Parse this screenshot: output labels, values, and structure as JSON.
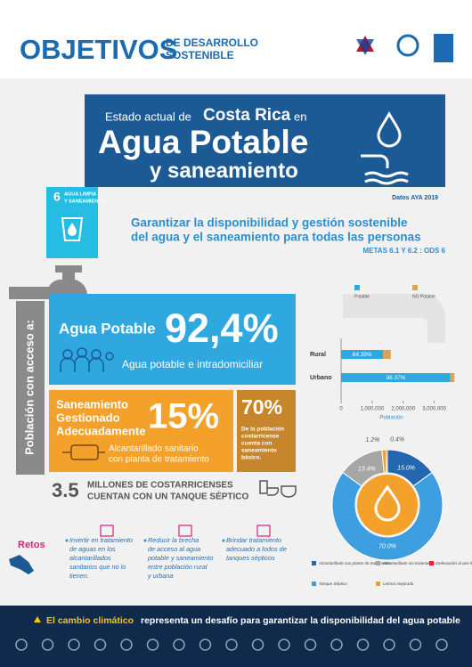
{
  "header": {
    "title": "OBJETIVOS",
    "subtitle": [
      "DE DESARROLLO",
      "SOSTENIBLE"
    ]
  },
  "banner": {
    "lead": "Estado actual de",
    "country": "Costa Rica",
    "lead_end": "en",
    "title": "Agua Potable",
    "subtitle": "y saneamiento",
    "source": "Datos AYA 2019"
  },
  "goal": {
    "number": "6",
    "label": [
      "AGUA LIMPIA",
      "Y SANEAMIENTO"
    ],
    "statement": [
      "Garantizar la disponibilidad y gestión sostenible",
      "del agua y el saneamiento para todas las personas"
    ],
    "targets": "METAS 6.1 Y 6.2 : ODS 6"
  },
  "access": {
    "label": "Población con acceso a:",
    "water": {
      "title": "Agua Potable",
      "value": "92,4%",
      "note": "Agua potable e intradomiciliar"
    },
    "sanitation": {
      "title": [
        "Saneamiento",
        "Gestionado",
        "Adecuadamente"
      ],
      "value": "15%",
      "note": [
        "Alcantarillado sanitario",
        "con planta de tratamiento"
      ]
    },
    "basic": {
      "value": "70%",
      "note": [
        "De la población",
        "costarricense",
        "cuenta con",
        "saneamiento",
        "básico."
      ]
    },
    "septic": {
      "value": "3.5",
      "text": [
        "MILLONES DE COSTARRICENSES",
        "CUENTAN CON UN TANQUE SÉPTICO"
      ]
    }
  },
  "bar_chart": {
    "type": "bar",
    "orientation": "horizontal",
    "stacked": true,
    "categories": [
      "Rural",
      "Urbano"
    ],
    "series": [
      {
        "name": "Potable",
        "color": "#2fa8df",
        "values": [
          1350000,
          3520000
        ],
        "value_labels": [
          "84.39%",
          "96.37%"
        ]
      },
      {
        "name": "NO Potable",
        "color": "#d9a35a",
        "values": [
          250000,
          130000
        ]
      }
    ],
    "xlim": [
      0,
      3700000
    ],
    "xticks": [
      0,
      {
        "value": 1000000,
        "label": "1,000,000"
      },
      {
        "value": 2000000,
        "label": "2,000,000"
      },
      {
        "value": 3000000,
        "label": "3,000,000"
      }
    ],
    "xlabel": "Población"
  },
  "pie_chart": {
    "type": "pie",
    "donut": true,
    "categories": [
      "Alcantarillado con planta de tratamiento",
      "Tanque Séptico",
      "Alcantarillado sin tratamiento",
      "Letrina mejorada",
      "Defecación al aire libre"
    ],
    "values": [
      15.0,
      70.0,
      13.4,
      1.2,
      0.4
    ],
    "value_labels": [
      "15.0%",
      "70.0%",
      "13.4%",
      "1.2%",
      "0.4%"
    ],
    "colors": [
      "#2467b0",
      "#3d9fe0",
      "#a6a6a6",
      "#f0a030",
      "#e02828"
    ]
  },
  "challenges": {
    "title": "Retos",
    "items": [
      [
        "Invertir en tratamiento",
        "de aguas en los",
        "alcantarillados",
        "sanitarios que no lo",
        "tienen."
      ],
      [
        "Reducir la brecha",
        "de acceso al agua",
        "potable y saneamiento",
        "entre población rural",
        "y urbana"
      ],
      [
        "Brindar tratamiento",
        "adecuado a lodos de",
        "tanques sépticos"
      ]
    ]
  },
  "footer": {
    "highlight": "El cambio climático",
    "text": "representa un desafío para garantizar la disponibilidad del agua potable"
  }
}
